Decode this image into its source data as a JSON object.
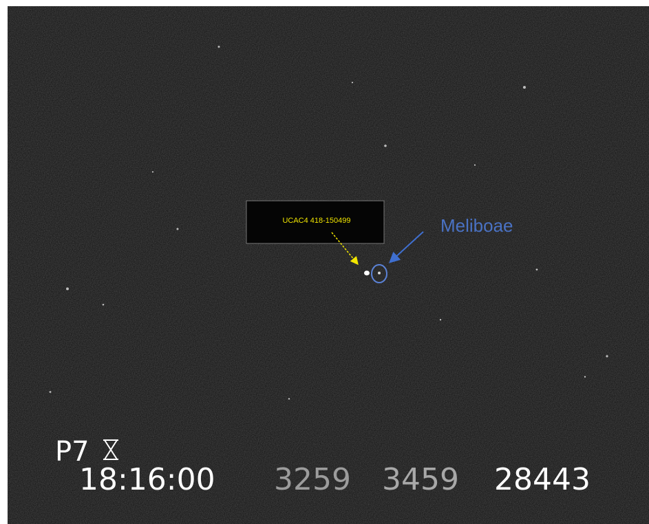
{
  "annotations": {
    "star_label": "UCAC4 418-150499",
    "target_label": "Meliboae"
  },
  "overlay": {
    "camera": "P7",
    "time": "18:16:00",
    "field_1": "3259",
    "field_2": "3459",
    "field_3": "28443"
  }
}
